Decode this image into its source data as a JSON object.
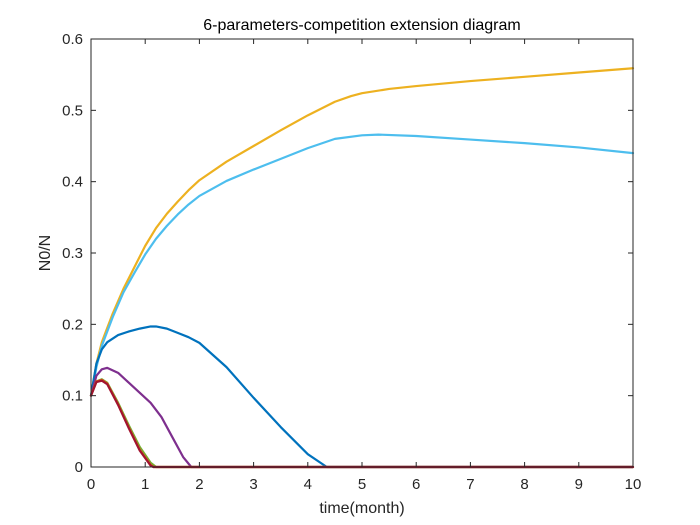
{
  "chart_data": {
    "type": "line",
    "title": "6-parameters-competition extension diagram",
    "xlabel": "time(month)",
    "ylabel": "N0/N",
    "xlim": [
      0,
      10
    ],
    "ylim": [
      0,
      0.6
    ],
    "xticks": [
      "0",
      "1",
      "2",
      "3",
      "4",
      "5",
      "6",
      "7",
      "8",
      "9",
      "10"
    ],
    "yticks": [
      "0",
      "0.1",
      "0.2",
      "0.3",
      "0.4",
      "0.5",
      "0.6"
    ],
    "grid": false,
    "legend": "none",
    "series": [
      {
        "color": "#EDB120",
        "x": [
          0,
          0.1,
          0.2,
          0.4,
          0.6,
          0.8,
          1.0,
          1.2,
          1.4,
          1.6,
          1.8,
          2.0,
          2.5,
          3.0,
          3.5,
          4.0,
          4.5,
          4.8,
          5.0,
          5.5,
          6.0,
          7.0,
          8.0,
          9.0,
          10.0
        ],
        "y": [
          0.1,
          0.145,
          0.175,
          0.215,
          0.25,
          0.28,
          0.31,
          0.335,
          0.355,
          0.372,
          0.388,
          0.402,
          0.428,
          0.45,
          0.472,
          0.493,
          0.512,
          0.52,
          0.524,
          0.53,
          0.534,
          0.541,
          0.547,
          0.553,
          0.559
        ]
      },
      {
        "color": "#4DBEEE",
        "x": [
          0,
          0.1,
          0.2,
          0.4,
          0.6,
          0.8,
          1.0,
          1.2,
          1.4,
          1.6,
          1.8,
          2.0,
          2.5,
          3.0,
          3.5,
          4.0,
          4.5,
          5.0,
          5.3,
          6.0,
          7.0,
          8.0,
          9.0,
          10.0
        ],
        "y": [
          0.1,
          0.14,
          0.17,
          0.21,
          0.245,
          0.272,
          0.298,
          0.32,
          0.338,
          0.354,
          0.368,
          0.38,
          0.401,
          0.417,
          0.432,
          0.447,
          0.46,
          0.465,
          0.466,
          0.464,
          0.459,
          0.454,
          0.448,
          0.44
        ]
      },
      {
        "color": "#0072BD",
        "x": [
          0,
          0.1,
          0.2,
          0.3,
          0.5,
          0.7,
          0.9,
          1.1,
          1.2,
          1.4,
          1.6,
          1.8,
          2.0,
          2.5,
          3.0,
          3.5,
          4.0,
          4.35,
          5.0,
          6.0,
          7.0,
          8.0,
          9.0,
          10.0
        ],
        "y": [
          0.1,
          0.145,
          0.165,
          0.175,
          0.185,
          0.19,
          0.194,
          0.197,
          0.197,
          0.194,
          0.188,
          0.182,
          0.174,
          0.14,
          0.097,
          0.056,
          0.018,
          0.0,
          0.0,
          0.0,
          0.0,
          0.0,
          0.0,
          0.0
        ]
      },
      {
        "color": "#7E2F8E",
        "x": [
          0,
          0.1,
          0.2,
          0.3,
          0.5,
          0.7,
          0.9,
          1.1,
          1.3,
          1.5,
          1.7,
          1.85,
          2.0,
          3.0,
          4.0,
          5.0,
          6.0,
          7.0,
          8.0,
          9.0,
          10.0
        ],
        "y": [
          0.1,
          0.128,
          0.137,
          0.139,
          0.132,
          0.118,
          0.104,
          0.09,
          0.07,
          0.042,
          0.014,
          0.0,
          0.0,
          0.0,
          0.0,
          0.0,
          0.0,
          0.0,
          0.0,
          0.0,
          0.0
        ]
      },
      {
        "color": "#77AC30",
        "x": [
          0,
          0.1,
          0.2,
          0.3,
          0.5,
          0.7,
          0.9,
          1.1,
          1.2,
          1.5,
          2.0,
          3.0,
          4.0,
          5.0,
          6.0,
          7.0,
          8.0,
          9.0,
          10.0
        ],
        "y": [
          0.1,
          0.12,
          0.123,
          0.118,
          0.09,
          0.058,
          0.028,
          0.006,
          0.0,
          0.0,
          0.0,
          0.0,
          0.0,
          0.0,
          0.0,
          0.0,
          0.0,
          0.0,
          0.0
        ]
      },
      {
        "color": "#D95319",
        "x": [
          0,
          0.1,
          0.2,
          0.3,
          0.5,
          0.7,
          0.9,
          1.1,
          1.15,
          1.5,
          2.0,
          3.0,
          4.0,
          5.0,
          6.0,
          7.0,
          8.0,
          9.0,
          10.0
        ],
        "y": [
          0.1,
          0.12,
          0.122,
          0.117,
          0.088,
          0.055,
          0.024,
          0.003,
          0.0,
          0.0,
          0.0,
          0.0,
          0.0,
          0.0,
          0.0,
          0.0,
          0.0,
          0.0,
          0.0
        ]
      },
      {
        "color": "#A2142F",
        "x": [
          0,
          0.1,
          0.2,
          0.3,
          0.5,
          0.7,
          0.9,
          1.1,
          1.15,
          1.5,
          2.0,
          3.0,
          4.0,
          5.0,
          6.0,
          7.0,
          8.0,
          9.0,
          10.0
        ],
        "y": [
          0.1,
          0.119,
          0.121,
          0.116,
          0.087,
          0.054,
          0.023,
          0.002,
          0.0,
          0.0,
          0.0,
          0.0,
          0.0,
          0.0,
          0.0,
          0.0,
          0.0,
          0.0,
          0.0
        ]
      }
    ]
  }
}
